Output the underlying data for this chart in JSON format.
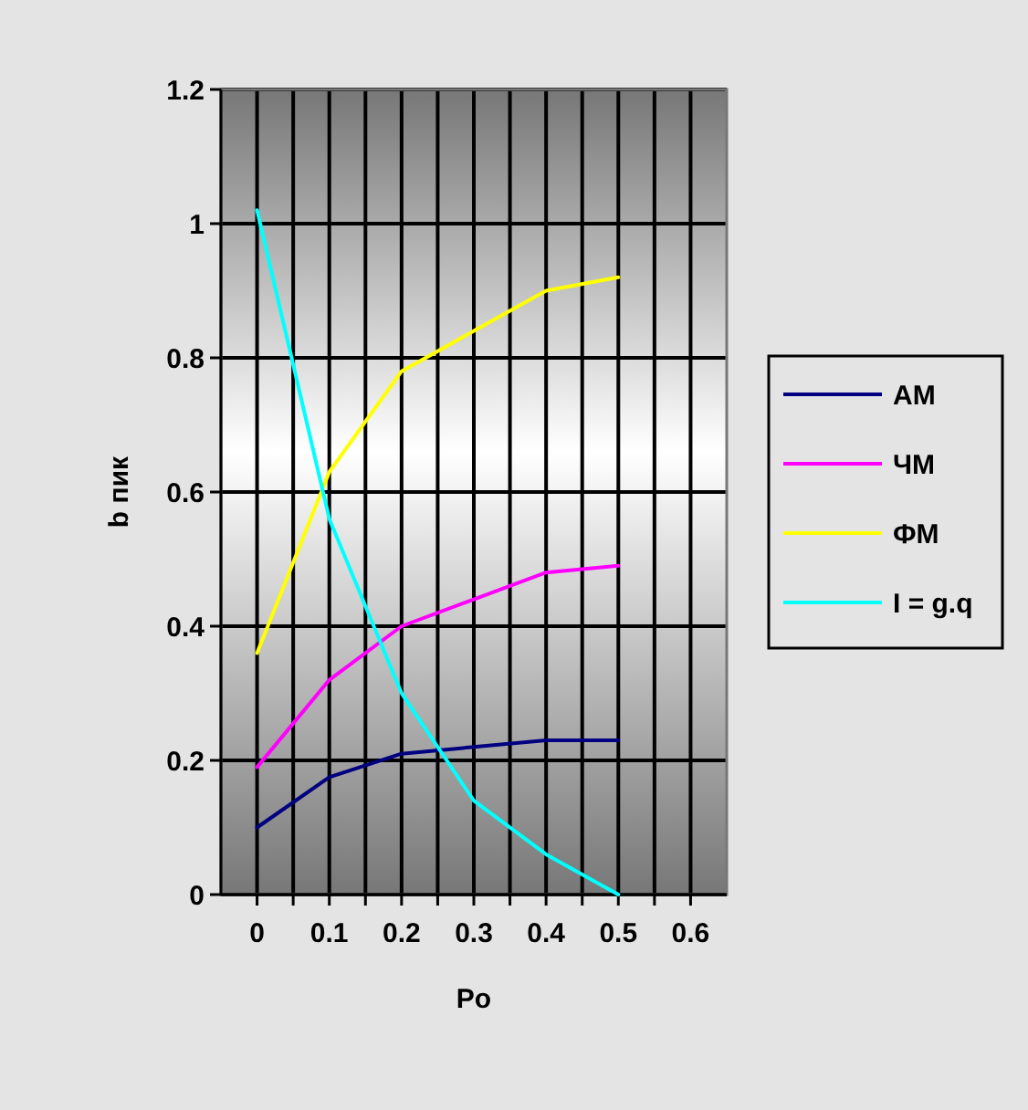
{
  "chart_data": {
    "type": "line",
    "xlabel": "Po",
    "ylabel": "b пик",
    "x": [
      0,
      0.1,
      0.2,
      0.3,
      0.4,
      0.5
    ],
    "series": [
      {
        "name": "АМ",
        "color": "#000080",
        "values": [
          0.1,
          0.175,
          0.21,
          0.22,
          0.23,
          0.23
        ]
      },
      {
        "name": "ЧМ",
        "color": "#ff00ff",
        "values": [
          0.19,
          0.32,
          0.4,
          0.44,
          0.48,
          0.49
        ]
      },
      {
        "name": "ФМ",
        "color": "#ffff00",
        "values": [
          0.36,
          0.63,
          0.78,
          0.84,
          0.9,
          0.92
        ]
      },
      {
        "name": "I = g.q",
        "color": "#00ffff",
        "values": [
          1.02,
          0.56,
          0.3,
          0.14,
          0.06,
          0
        ]
      }
    ],
    "xlim": [
      -0.05,
      0.65
    ],
    "xticks": [
      0,
      {
        "value": 0.05,
        "label": null
      },
      0.1,
      {
        "value": 0.15,
        "label": null
      },
      0.2,
      {
        "value": 0.25,
        "label": null
      },
      0.3,
      {
        "value": 0.35,
        "label": null
      },
      0.4,
      {
        "value": 0.45,
        "label": null
      },
      0.5,
      {
        "value": 0.55,
        "label": null
      },
      0.6
    ],
    "ylim": [
      0,
      1.2
    ],
    "yticks": [
      0,
      0.2,
      0.4,
      0.6,
      0.8,
      1,
      1.2
    ],
    "grid": true,
    "legend": "right",
    "marker": "none",
    "line_style": "solid"
  }
}
